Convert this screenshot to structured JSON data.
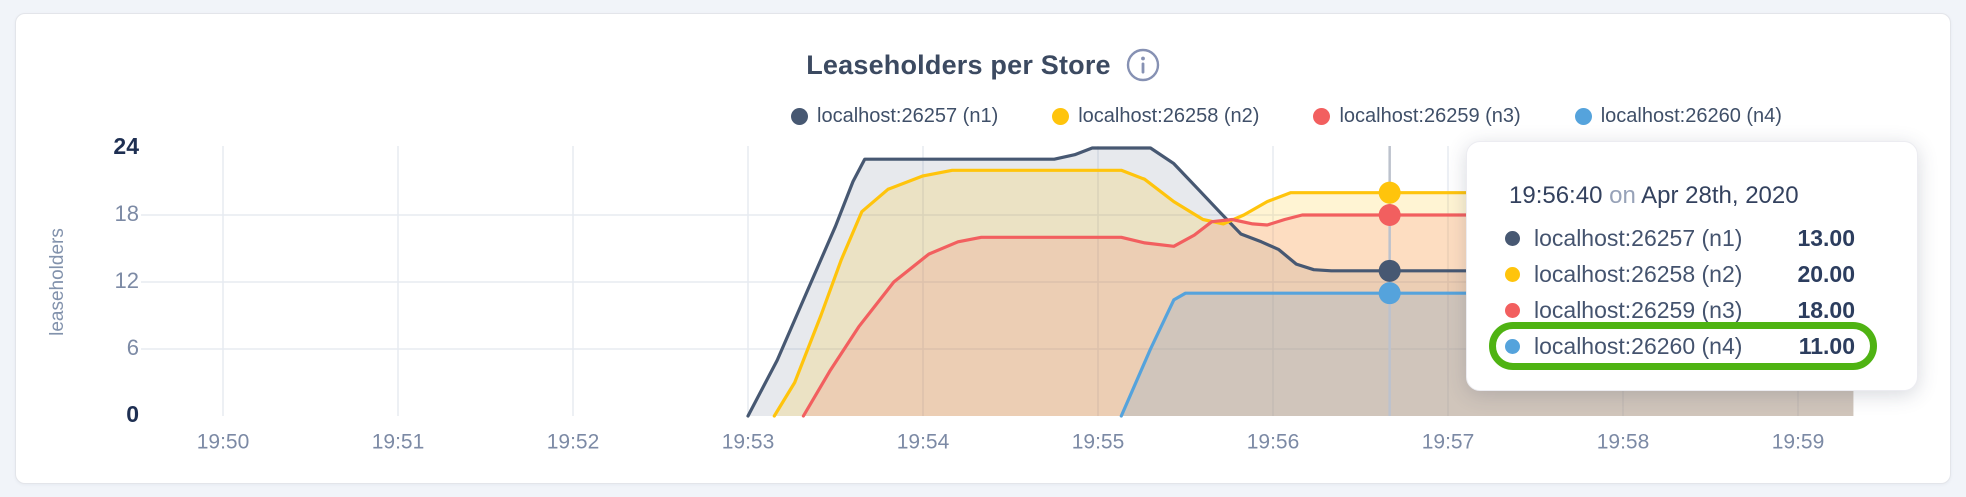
{
  "header": {
    "title": "Leaseholders per Store",
    "info_icon": "info-circle"
  },
  "legend": {
    "items": [
      {
        "label": "localhost:26257 (n1)",
        "color": "#475872"
      },
      {
        "label": "localhost:26258 (n2)",
        "color": "#ffc40c"
      },
      {
        "label": "localhost:26259 (n3)",
        "color": "#f25f5f"
      },
      {
        "label": "localhost:26260 (n4)",
        "color": "#55a3dc"
      }
    ]
  },
  "axes": {
    "y_label": "leaseholders",
    "y_ticks": [
      0,
      6,
      12,
      18,
      24
    ],
    "y_ticks_bold": [
      0,
      24
    ],
    "x_ticks": [
      "19:50",
      "19:51",
      "19:52",
      "19:53",
      "19:54",
      "19:55",
      "19:56",
      "19:57",
      "19:58",
      "19:59"
    ]
  },
  "chart_data": {
    "type": "area",
    "title": "Leaseholders per Store",
    "ylabel": "leaseholders",
    "ylim": [
      0,
      24
    ],
    "grid": true,
    "legend_position": "top",
    "x_unit": "seconds since 19:50:00",
    "x_tick_labels": [
      "19:50",
      "19:51",
      "19:52",
      "19:53",
      "19:54",
      "19:55",
      "19:56",
      "19:57",
      "19:58",
      "19:59"
    ],
    "x_tick_seconds": [
      0,
      60,
      120,
      180,
      240,
      300,
      360,
      420,
      480,
      540
    ],
    "series": [
      {
        "name": "localhost:26257 (n1)",
        "color": "#475872",
        "points": [
          [
            180,
            0
          ],
          [
            190,
            5
          ],
          [
            200,
            11
          ],
          [
            210,
            17
          ],
          [
            216,
            21
          ],
          [
            220,
            23
          ],
          [
            285,
            23
          ],
          [
            292,
            23.4
          ],
          [
            298,
            24
          ],
          [
            318,
            24
          ],
          [
            326,
            22.6
          ],
          [
            334,
            20.4
          ],
          [
            342,
            18.2
          ],
          [
            349,
            16.3
          ],
          [
            356,
            15.6
          ],
          [
            362,
            14.9
          ],
          [
            368,
            13.6
          ],
          [
            374,
            13.1
          ],
          [
            380,
            13
          ],
          [
            559,
            13
          ]
        ]
      },
      {
        "name": "localhost:26258 (n2)",
        "color": "#ffc40c",
        "points": [
          [
            189,
            0
          ],
          [
            196,
            3
          ],
          [
            205,
            9
          ],
          [
            212,
            14
          ],
          [
            219,
            18.3
          ],
          [
            228,
            20.3
          ],
          [
            240,
            21.5
          ],
          [
            250,
            22
          ],
          [
            308,
            22
          ],
          [
            316,
            21.2
          ],
          [
            326,
            19.2
          ],
          [
            336,
            17.6
          ],
          [
            343,
            17.2
          ],
          [
            350,
            18
          ],
          [
            358,
            19.2
          ],
          [
            366,
            20
          ],
          [
            559,
            20
          ]
        ]
      },
      {
        "name": "localhost:26259 (n3)",
        "color": "#f25f5f",
        "points": [
          [
            199,
            0
          ],
          [
            208,
            4
          ],
          [
            218,
            8
          ],
          [
            230,
            12
          ],
          [
            242,
            14.5
          ],
          [
            252,
            15.6
          ],
          [
            260,
            16
          ],
          [
            308,
            16
          ],
          [
            316,
            15.5
          ],
          [
            326,
            15.2
          ],
          [
            333,
            16.2
          ],
          [
            339,
            17.4
          ],
          [
            346,
            17.6
          ],
          [
            353,
            17.2
          ],
          [
            358,
            17.1
          ],
          [
            364,
            17.6
          ],
          [
            370,
            18
          ],
          [
            559,
            18
          ]
        ]
      },
      {
        "name": "localhost:26260 (n4)",
        "color": "#55a3dc",
        "points": [
          [
            308,
            0
          ],
          [
            318,
            6
          ],
          [
            326,
            10.4
          ],
          [
            330,
            11
          ],
          [
            559,
            11
          ]
        ]
      }
    ],
    "hover": {
      "time_label": "19:56:40",
      "t": 400,
      "values": [
        13,
        20,
        18,
        11
      ]
    }
  },
  "tooltip": {
    "time": "19:56:40",
    "conj": "on",
    "date": "Apr 28th, 2020",
    "rows": [
      {
        "label": "localhost:26257 (n1)",
        "value": "13.00",
        "color": "#475872",
        "highlighted": false
      },
      {
        "label": "localhost:26258 (n2)",
        "value": "20.00",
        "color": "#ffc40c",
        "highlighted": false
      },
      {
        "label": "localhost:26259 (n3)",
        "value": "18.00",
        "color": "#f25f5f",
        "highlighted": false
      },
      {
        "label": "localhost:26260 (n4)",
        "value": "11.00",
        "color": "#55a3dc",
        "highlighted": true
      }
    ],
    "highlight_color": "#4fb313"
  },
  "colors": {
    "page_background": "#f1f4f9",
    "card_background": "#ffffff",
    "grid_line": "#e7ebf1",
    "axis_tick": "#7c8aa5",
    "axis_tick_bold": "#1e2f52",
    "hover_line": "#bcc2cd",
    "title_text": "#3c4a61"
  }
}
